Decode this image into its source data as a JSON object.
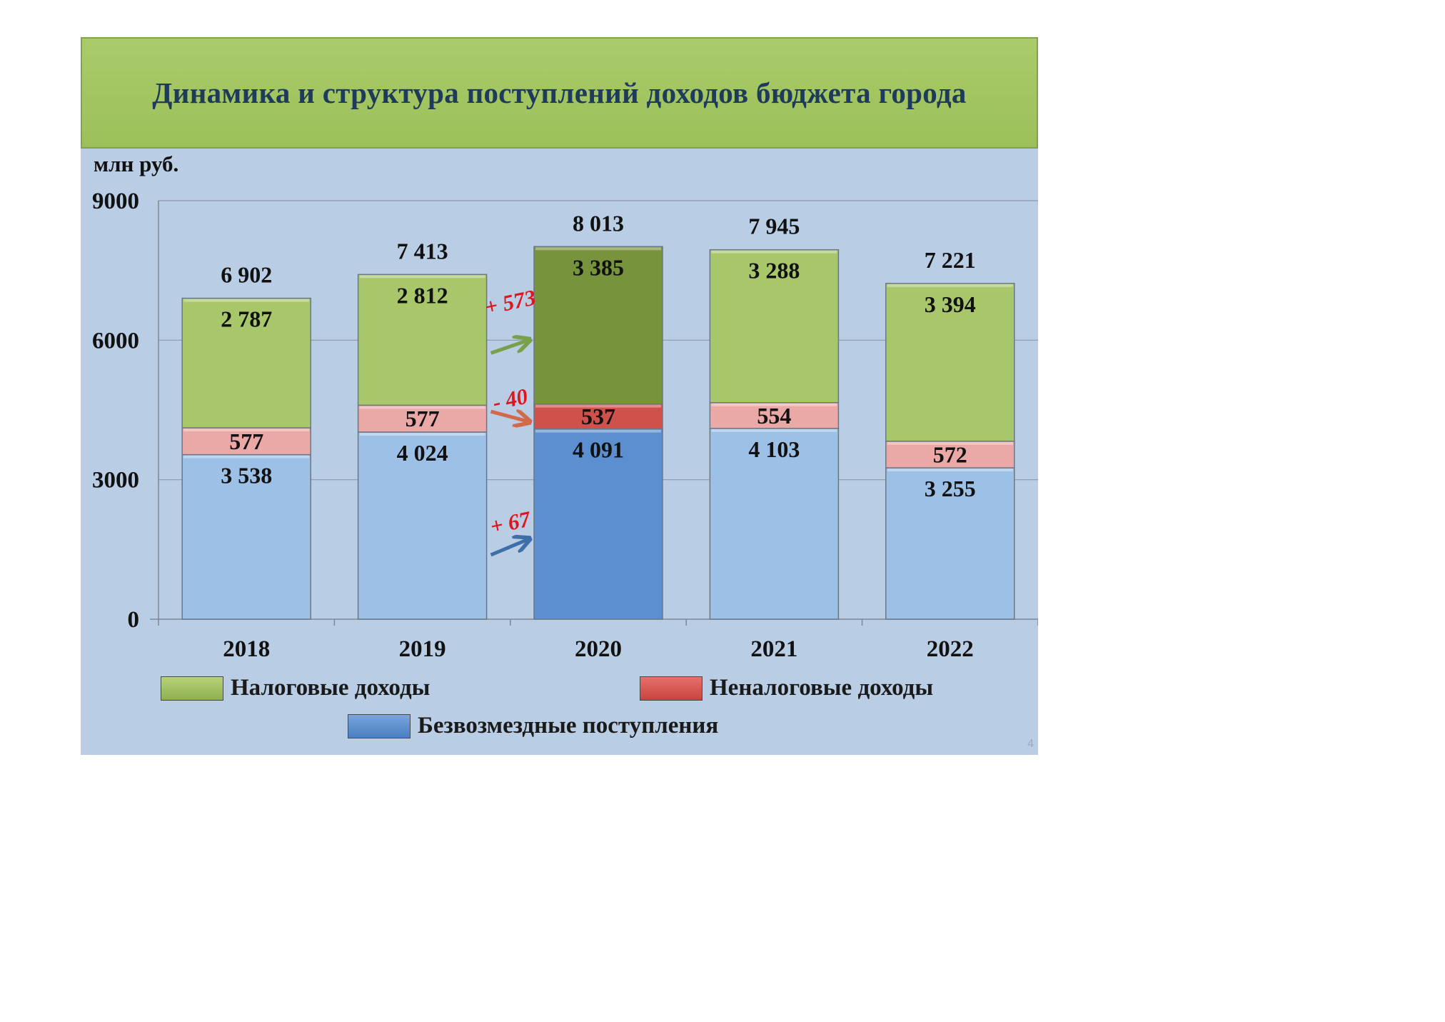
{
  "title": "Динамика и структура поступлений доходов бюджета города",
  "unit": "млн руб.",
  "page_number": "4",
  "legend": [
    {
      "label": "Налоговые доходы",
      "color": "#a8c66a"
    },
    {
      "label": "Неналоговые доходы",
      "color": "#d9534f"
    },
    {
      "label": "Безвозмездные поступления",
      "color": "#5b8fd0"
    }
  ],
  "chart_data": {
    "type": "bar",
    "stacked": true,
    "categories": [
      "2018",
      "2019",
      "2020",
      "2021",
      "2022"
    ],
    "ylim": [
      0,
      9000
    ],
    "yticks": [
      0,
      3000,
      6000,
      9000
    ],
    "grid": true,
    "legend_position": "bottom",
    "series": [
      {
        "name": "Безвозмездные поступления",
        "values": [
          3538,
          4024,
          4091,
          4103,
          3255
        ],
        "value_labels": [
          "3 538",
          "4 024",
          "4 091",
          "4 103",
          "3 255"
        ],
        "color": "#9dc0e6",
        "highlight_color": "#5b8fd0"
      },
      {
        "name": "Неналоговые доходы",
        "values": [
          577,
          577,
          537,
          554,
          572
        ],
        "value_labels": [
          "577",
          "577",
          "537",
          "554",
          "572"
        ],
        "color": "#eaa8a6",
        "highlight_color": "#d0504c"
      },
      {
        "name": "Налоговые доходы",
        "values": [
          2787,
          2812,
          3385,
          3288,
          3394
        ],
        "value_labels": [
          "2 787",
          "2 812",
          "3 385",
          "3 288",
          "3 394"
        ],
        "color": "#a8c66a",
        "highlight_color": "#77933c"
      }
    ],
    "totals": [
      "6 902",
      "7 413",
      "8 013",
      "7 945",
      "7 221"
    ],
    "highlight_category": "2020",
    "annotations": [
      {
        "text": "+ 573",
        "series": "Налоговые доходы",
        "arrow_color": "#79a04a"
      },
      {
        "text": "- 40",
        "series": "Неналоговые доходы",
        "arrow_color": "#d2694a"
      },
      {
        "text": "+ 67",
        "series": "Безвозмездные поступления",
        "arrow_color": "#3f6fa8"
      }
    ]
  }
}
